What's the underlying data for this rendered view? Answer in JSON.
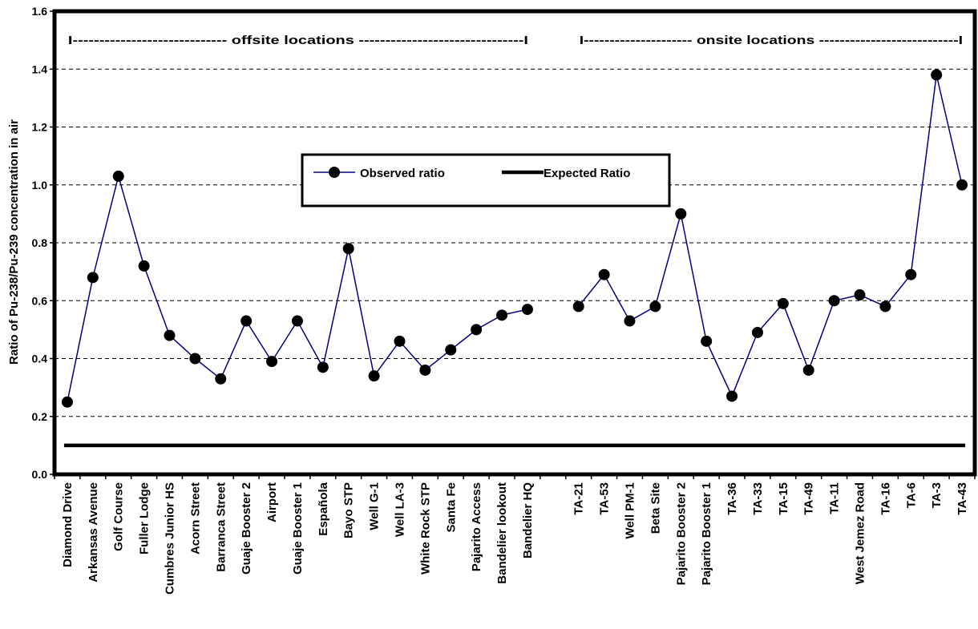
{
  "chart_data": {
    "type": "line",
    "ylabel": "Ratio of Pu-238/Pu-239 concentration in air",
    "xlabel": "",
    "ylim": [
      0,
      1.6
    ],
    "yticks": [
      "0.0",
      "0.2",
      "0.4",
      "0.6",
      "0.8",
      "1.0",
      "1.2",
      "1.4",
      "1.6"
    ],
    "grid": "horizontal dashed",
    "legend_position": "center-left",
    "categories": [
      "Diamond Drive",
      "Arkansas Avenue",
      "Golf Course",
      "Fuller Lodge",
      "Cumbres Junior HS",
      "Acorn Street",
      "Barranca Street",
      "Guaje Booster 2",
      "Airport",
      "Guaje Booster 1",
      "Española",
      "Bayo STP",
      "Well G-1",
      "Well LA-3",
      "White Rock STP",
      "Santa Fe",
      "Pajarito Access",
      "Bandelier lookout",
      "Bandelier HQ",
      "",
      "TA-21",
      "TA-53",
      "Well PM-1",
      "Beta Site",
      "Pajarito Booster 2",
      "Pajarito Booster 1",
      "TA-36",
      "TA-33",
      "TA-15",
      "TA-49",
      "TA-11",
      "West Jemez Road",
      "TA-16",
      "TA-6",
      "TA-3",
      "TA-43"
    ],
    "series": [
      {
        "name": "Observed ratio",
        "color": "#000080",
        "marker": "circle",
        "values": [
          0.25,
          0.68,
          1.03,
          0.72,
          0.48,
          0.4,
          0.33,
          0.53,
          0.39,
          0.53,
          0.37,
          0.78,
          0.34,
          0.46,
          0.36,
          0.43,
          0.5,
          0.55,
          0.57,
          null,
          0.58,
          0.69,
          0.53,
          0.58,
          0.9,
          0.46,
          0.27,
          0.49,
          0.59,
          0.36,
          0.6,
          0.62,
          0.58,
          0.69,
          1.38,
          1.0
        ]
      },
      {
        "name": "Expected Ratio",
        "color": "#000000",
        "value": 0.1
      }
    ],
    "annotations": [
      {
        "text": "I----------------------------- offsite locations -------------------------------I",
        "span": [
          "Diamond Drive",
          "Bandelier HQ"
        ]
      },
      {
        "text": "I--------------------- onsite locations ---------------------------I",
        "span": [
          "TA-21",
          "TA-43"
        ]
      }
    ]
  }
}
